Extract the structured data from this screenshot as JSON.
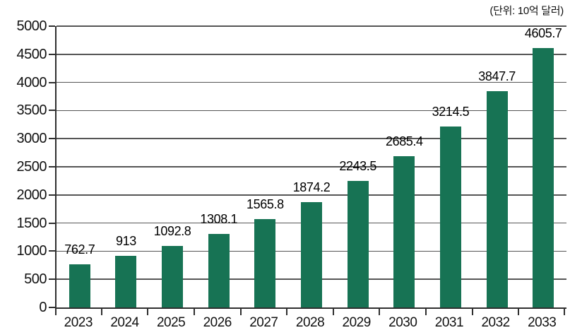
{
  "chart": {
    "unit_label": "(단위: 10억 달러)",
    "colors": {
      "bar": "#177354",
      "gridline": "#555555",
      "axis": "#2f2f2f",
      "text": "#111111"
    }
  },
  "chart_data": {
    "type": "bar",
    "title": "",
    "subtitle": "",
    "unit_note": "(단위: 10억 달러)",
    "categories": [
      "2023",
      "2024",
      "2025",
      "2026",
      "2027",
      "2028",
      "2029",
      "2030",
      "2031",
      "2032",
      "2033"
    ],
    "values": [
      762.7,
      913,
      1092.8,
      1308.1,
      1565.8,
      1874.2,
      2243.5,
      2685.4,
      3214.5,
      3847.7,
      4605.7
    ],
    "value_labels": [
      "762.7",
      "913",
      "1092.8",
      "1308.1",
      "1565.8",
      "1874.2",
      "2243.5",
      "2685.4",
      "3214.5",
      "3847.7",
      "4605.7"
    ],
    "xlabel": "",
    "ylabel": "",
    "ylim": [
      0,
      5000
    ],
    "y_tick_step": 500,
    "y_ticks": [
      0,
      500,
      1000,
      1500,
      2000,
      2500,
      3000,
      3500,
      4000,
      4500,
      5000
    ],
    "grid": "horizontal",
    "legend": "none",
    "bar_color": "#177354"
  }
}
